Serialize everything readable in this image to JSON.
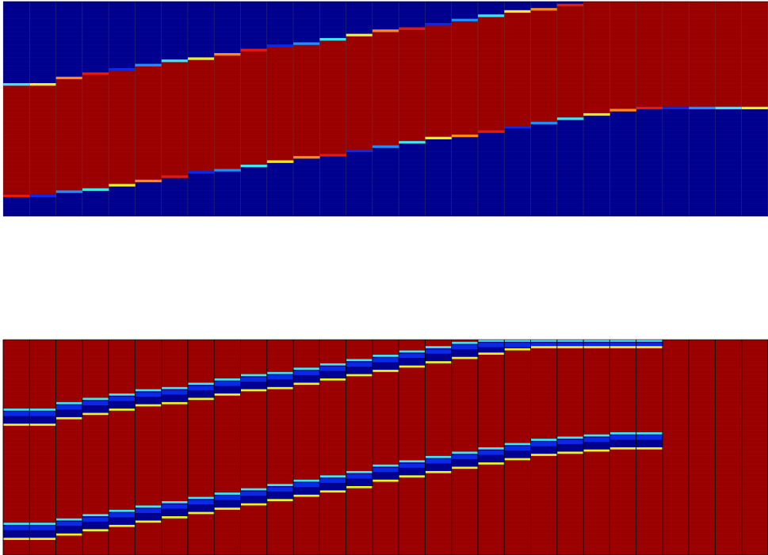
{
  "colormap": {
    "name": "jet",
    "background_high": "#9b0000",
    "background_low": "#00008f",
    "mid_blue": "#0a28e6",
    "light_blue": "#1f8eff",
    "cyan": "#3ee8f0",
    "yellow": "#f2f21a",
    "orange": "#ff8a1a",
    "red": "#e61a0a",
    "grid_line": "#5a5a5a",
    "frame_line": "#000000"
  },
  "chart_data": [
    {
      "type": "heatmap",
      "title": "",
      "xlabel": "",
      "ylabel": "",
      "columns": 29,
      "rows": 100,
      "band": "high",
      "background": "low",
      "band_shift_columns": 23,
      "band_top_row": [
        39,
        39,
        36,
        34,
        32,
        30,
        28,
        27,
        25,
        23,
        21,
        20,
        18,
        16,
        14,
        13,
        11,
        9,
        7,
        5,
        4,
        2,
        0,
        0
      ],
      "band_bottom_row": [
        90,
        90,
        88,
        87,
        85,
        83,
        81,
        79,
        78,
        76,
        74,
        72,
        71,
        69,
        67,
        65,
        63,
        62,
        60,
        58,
        56,
        54,
        52,
        50
      ],
      "after_shift": {
        "band_top_row": 0,
        "band_bottom_row": 49
      }
    },
    {
      "type": "heatmap",
      "title": "",
      "xlabel": "",
      "ylabel": "",
      "columns": 29,
      "rows": 100,
      "band": "low",
      "background": "high",
      "band_shift_columns": 25,
      "band_1_center_row": [
        36,
        36,
        33,
        31,
        29,
        27,
        26,
        24,
        22,
        20,
        19,
        17,
        15,
        13,
        11,
        9,
        7,
        5,
        3,
        1,
        0,
        0,
        0,
        0,
        0
      ],
      "band_2_center_row": [
        89,
        89,
        87,
        85,
        83,
        81,
        79,
        77,
        75,
        73,
        71,
        69,
        67,
        65,
        62,
        60,
        58,
        56,
        54,
        52,
        50,
        49,
        48,
        47,
        47
      ],
      "band_half_width_rows": 4
    }
  ]
}
